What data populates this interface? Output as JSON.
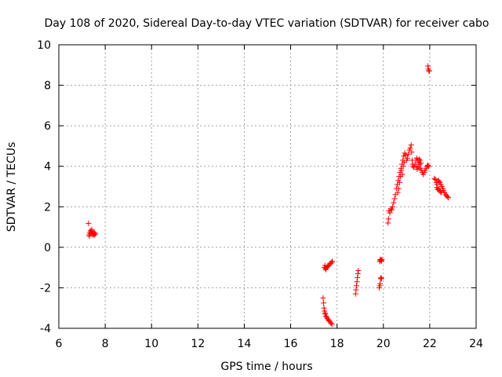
{
  "chart_data": {
    "type": "scatter",
    "title": "Day 108 of 2020, Sidereal Day-to-day VTEC variation (SDTVAR) for receiver cabo",
    "xlabel": "GPS time / hours",
    "ylabel": "SDTVAR / TECUs",
    "xlim": [
      6,
      24
    ],
    "ylim": [
      -4,
      10
    ],
    "xticks": [
      "6",
      "8",
      "10",
      "12",
      "14",
      "16",
      "18",
      "20",
      "22",
      "24"
    ],
    "yticks": [
      "-4",
      "-2",
      "0",
      "2",
      "4",
      "6",
      "8",
      "10"
    ],
    "grid": true,
    "marker": "+",
    "color": "#ff0000",
    "series": [
      {
        "name": "SDTVAR",
        "points": [
          [
            7.28,
            1.18
          ],
          [
            7.3,
            0.62
          ],
          [
            7.32,
            0.55
          ],
          [
            7.34,
            0.72
          ],
          [
            7.36,
            0.82
          ],
          [
            7.38,
            0.68
          ],
          [
            7.4,
            0.78
          ],
          [
            7.42,
            0.88
          ],
          [
            7.44,
            0.7
          ],
          [
            7.46,
            0.62
          ],
          [
            7.48,
            0.75
          ],
          [
            7.5,
            0.68
          ],
          [
            7.52,
            0.6
          ],
          [
            7.54,
            0.72
          ],
          [
            7.56,
            0.65
          ],
          [
            7.58,
            0.66
          ],
          [
            17.4,
            -2.5
          ],
          [
            17.42,
            -2.75
          ],
          [
            17.44,
            -3.0
          ],
          [
            17.46,
            -3.15
          ],
          [
            17.48,
            -3.25
          ],
          [
            17.5,
            -3.3
          ],
          [
            17.52,
            -3.4
          ],
          [
            17.55,
            -3.45
          ],
          [
            17.58,
            -3.52
          ],
          [
            17.62,
            -3.58
          ],
          [
            17.66,
            -3.62
          ],
          [
            17.7,
            -3.68
          ],
          [
            17.74,
            -3.75
          ],
          [
            17.78,
            -3.8
          ],
          [
            17.45,
            -1.0
          ],
          [
            17.48,
            -0.9
          ],
          [
            17.5,
            -1.05
          ],
          [
            17.52,
            -1.1
          ],
          [
            17.55,
            -1.0
          ],
          [
            17.58,
            -0.95
          ],
          [
            17.62,
            -0.92
          ],
          [
            17.66,
            -0.88
          ],
          [
            17.7,
            -0.8
          ],
          [
            17.74,
            -0.78
          ],
          [
            17.78,
            -0.72
          ],
          [
            17.8,
            -0.7
          ],
          [
            18.8,
            -2.3
          ],
          [
            18.82,
            -2.1
          ],
          [
            18.84,
            -1.9
          ],
          [
            18.86,
            -1.7
          ],
          [
            18.88,
            -1.5
          ],
          [
            18.9,
            -1.3
          ],
          [
            18.92,
            -1.15
          ],
          [
            19.82,
            -2.0
          ],
          [
            19.84,
            -1.9
          ],
          [
            19.86,
            -1.8
          ],
          [
            19.88,
            -1.55
          ],
          [
            19.9,
            -1.5
          ],
          [
            19.92,
            -1.55
          ],
          [
            19.84,
            -0.7
          ],
          [
            19.86,
            -0.62
          ],
          [
            19.88,
            -0.6
          ],
          [
            19.9,
            -0.65
          ],
          [
            19.92,
            -0.68
          ],
          [
            19.94,
            -0.6
          ],
          [
            20.2,
            1.2
          ],
          [
            20.22,
            1.4
          ],
          [
            20.24,
            1.8
          ],
          [
            20.28,
            1.7
          ],
          [
            20.32,
            1.9
          ],
          [
            20.36,
            1.85
          ],
          [
            20.4,
            2.0
          ],
          [
            20.44,
            2.2
          ],
          [
            20.48,
            2.4
          ],
          [
            20.52,
            2.6
          ],
          [
            20.56,
            2.9
          ],
          [
            20.6,
            3.1
          ],
          [
            20.64,
            3.3
          ],
          [
            20.68,
            3.5
          ],
          [
            20.72,
            3.7
          ],
          [
            20.76,
            3.9
          ],
          [
            20.8,
            4.1
          ],
          [
            20.84,
            4.3
          ],
          [
            20.88,
            4.5
          ],
          [
            20.92,
            4.65
          ],
          [
            20.96,
            4.55
          ],
          [
            20.62,
            2.7
          ],
          [
            20.66,
            2.9
          ],
          [
            20.7,
            3.2
          ],
          [
            20.74,
            3.5
          ],
          [
            20.78,
            3.8
          ],
          [
            20.82,
            3.6
          ],
          [
            20.86,
            4.0
          ],
          [
            20.9,
            4.2
          ],
          [
            21.0,
            4.3
          ],
          [
            21.04,
            4.4
          ],
          [
            21.08,
            4.6
          ],
          [
            21.12,
            4.8
          ],
          [
            21.16,
            4.9
          ],
          [
            21.2,
            5.05
          ],
          [
            21.22,
            4.7
          ],
          [
            21.24,
            4.3
          ],
          [
            21.26,
            4.1
          ],
          [
            21.28,
            4.0
          ],
          [
            21.32,
            3.95
          ],
          [
            21.36,
            4.1
          ],
          [
            21.4,
            4.3
          ],
          [
            21.44,
            4.4
          ],
          [
            21.48,
            4.3
          ],
          [
            21.52,
            4.2
          ],
          [
            21.56,
            4.1
          ],
          [
            21.6,
            3.9
          ],
          [
            21.64,
            3.8
          ],
          [
            21.68,
            3.7
          ],
          [
            21.72,
            3.6
          ],
          [
            21.76,
            3.7
          ],
          [
            21.8,
            3.8
          ],
          [
            21.84,
            3.9
          ],
          [
            21.88,
            4.0
          ],
          [
            21.92,
            4.05
          ],
          [
            21.96,
            4.0
          ],
          [
            21.42,
            4.0
          ],
          [
            21.46,
            3.85
          ],
          [
            21.5,
            3.95
          ],
          [
            21.54,
            4.35
          ],
          [
            21.58,
            4.3
          ],
          [
            21.62,
            4.15
          ],
          [
            21.92,
            8.95
          ],
          [
            21.94,
            8.8
          ],
          [
            21.96,
            8.72
          ],
          [
            21.98,
            8.7
          ],
          [
            22.2,
            3.4
          ],
          [
            22.24,
            3.35
          ],
          [
            22.28,
            3.2
          ],
          [
            22.32,
            3.1
          ],
          [
            22.36,
            3.3
          ],
          [
            22.4,
            3.25
          ],
          [
            22.44,
            3.2
          ],
          [
            22.48,
            3.1
          ],
          [
            22.52,
            3.0
          ],
          [
            22.56,
            2.9
          ],
          [
            22.6,
            2.8
          ],
          [
            22.64,
            2.7
          ],
          [
            22.68,
            2.6
          ],
          [
            22.72,
            2.55
          ],
          [
            22.76,
            2.5
          ],
          [
            22.8,
            2.45
          ],
          [
            22.3,
            2.95
          ],
          [
            22.34,
            2.85
          ],
          [
            22.38,
            2.9
          ],
          [
            22.42,
            2.8
          ],
          [
            22.46,
            2.75
          ],
          [
            22.5,
            2.7
          ]
        ]
      }
    ]
  }
}
